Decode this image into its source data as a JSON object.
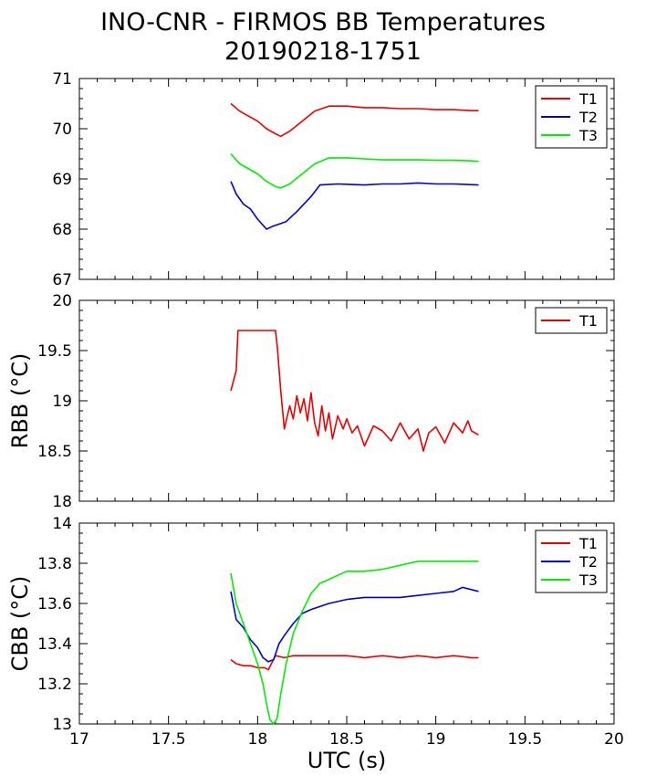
{
  "title": "INO-CNR - FIRMOS BB Temperatures",
  "subtitle": "20190218-1751",
  "colors": {
    "T1": "#ee0000",
    "T2": "#0000dd",
    "T3": "#00ee00",
    "axis": "#000000"
  },
  "chart_data": [
    {
      "type": "line",
      "ylabel": "",
      "xlim": [
        17,
        20
      ],
      "ylim": [
        67,
        71
      ],
      "yticks": [
        "67",
        "68",
        "69",
        "70",
        "71"
      ],
      "legend_placement": "top-right",
      "series": [
        {
          "name": "T1",
          "x": [
            17.85,
            17.9,
            17.95,
            18.0,
            18.05,
            18.1,
            18.13,
            18.18,
            18.25,
            18.32,
            18.4,
            18.5,
            18.6,
            18.7,
            18.8,
            18.9,
            19.0,
            19.1,
            19.2,
            19.24
          ],
          "y": [
            70.5,
            70.35,
            70.25,
            70.15,
            70.0,
            69.9,
            69.85,
            69.95,
            70.15,
            70.35,
            70.45,
            70.45,
            70.42,
            70.42,
            70.4,
            70.4,
            70.38,
            70.38,
            70.36,
            70.36
          ]
        },
        {
          "name": "T2",
          "x": [
            17.85,
            17.88,
            17.92,
            17.96,
            18.0,
            18.05,
            18.08,
            18.12,
            18.16,
            18.22,
            18.3,
            18.35,
            18.45,
            18.6,
            18.7,
            18.8,
            18.9,
            19.0,
            19.1,
            19.24
          ],
          "y": [
            68.95,
            68.7,
            68.5,
            68.4,
            68.2,
            68.0,
            68.05,
            68.1,
            68.15,
            68.35,
            68.65,
            68.88,
            68.9,
            68.88,
            68.9,
            68.9,
            68.92,
            68.9,
            68.9,
            68.88
          ]
        },
        {
          "name": "T3",
          "x": [
            17.85,
            17.9,
            17.95,
            18.0,
            18.05,
            18.1,
            18.13,
            18.18,
            18.25,
            18.32,
            18.4,
            18.5,
            18.6,
            18.7,
            18.8,
            18.9,
            19.0,
            19.1,
            19.2,
            19.24
          ],
          "y": [
            69.5,
            69.3,
            69.2,
            69.1,
            68.95,
            68.85,
            68.82,
            68.9,
            69.1,
            69.3,
            69.42,
            69.42,
            69.4,
            69.38,
            69.38,
            69.38,
            69.37,
            69.37,
            69.36,
            69.35
          ]
        }
      ]
    },
    {
      "type": "line",
      "ylabel": "RBB (°C)",
      "xlim": [
        17,
        20
      ],
      "ylim": [
        18,
        20
      ],
      "yticks": [
        "18",
        "18.5",
        "19",
        "19.5",
        "20"
      ],
      "legend_placement": "top-right",
      "series": [
        {
          "name": "T1",
          "x": [
            17.85,
            17.88,
            17.89,
            18.0,
            18.1,
            18.11,
            18.13,
            18.15,
            18.18,
            18.2,
            18.22,
            18.24,
            18.26,
            18.28,
            18.3,
            18.32,
            18.34,
            18.36,
            18.38,
            18.4,
            18.42,
            18.45,
            18.48,
            18.5,
            18.53,
            18.56,
            18.6,
            18.65,
            18.7,
            18.75,
            18.8,
            18.85,
            18.9,
            18.93,
            18.96,
            19.0,
            19.05,
            19.1,
            19.15,
            19.18,
            19.2,
            19.24
          ],
          "y": [
            19.1,
            19.3,
            19.7,
            19.7,
            19.7,
            19.55,
            19.1,
            18.72,
            18.95,
            18.82,
            19.05,
            18.88,
            19.02,
            18.8,
            19.08,
            18.78,
            18.65,
            18.95,
            18.7,
            18.88,
            18.62,
            18.85,
            18.72,
            18.82,
            18.68,
            18.75,
            18.55,
            18.75,
            18.7,
            18.6,
            18.78,
            18.62,
            18.72,
            18.5,
            18.68,
            18.74,
            18.58,
            18.78,
            18.68,
            18.8,
            18.7,
            18.66
          ]
        }
      ]
    },
    {
      "type": "line",
      "xlabel": "UTC (s)",
      "ylabel": "CBB (°C)",
      "xlim": [
        17,
        20
      ],
      "ylim": [
        13,
        14
      ],
      "xticks": [
        "17",
        "17.5",
        "18",
        "18.5",
        "19",
        "19.5",
        "20"
      ],
      "yticks": [
        "13",
        "13.2",
        "13.4",
        "13.6",
        "13.8",
        "14"
      ],
      "legend_placement": "top-right",
      "series": [
        {
          "name": "T1",
          "x": [
            17.85,
            17.88,
            17.92,
            17.96,
            18.0,
            18.04,
            18.06,
            18.1,
            18.15,
            18.2,
            18.3,
            18.4,
            18.5,
            18.6,
            18.7,
            18.8,
            18.9,
            19.0,
            19.1,
            19.2,
            19.24
          ],
          "y": [
            13.32,
            13.3,
            13.29,
            13.29,
            13.28,
            13.28,
            13.27,
            13.34,
            13.33,
            13.34,
            13.34,
            13.34,
            13.34,
            13.33,
            13.34,
            13.33,
            13.34,
            13.33,
            13.34,
            13.33,
            13.33
          ]
        },
        {
          "name": "T2",
          "x": [
            17.85,
            17.88,
            17.92,
            17.96,
            18.0,
            18.03,
            18.06,
            18.09,
            18.12,
            18.15,
            18.2,
            18.25,
            18.3,
            18.4,
            18.5,
            18.6,
            18.7,
            18.8,
            18.9,
            19.0,
            19.1,
            19.15,
            19.24
          ],
          "y": [
            13.66,
            13.52,
            13.48,
            13.42,
            13.38,
            13.33,
            13.31,
            13.32,
            13.4,
            13.44,
            13.5,
            13.55,
            13.57,
            13.6,
            13.62,
            13.63,
            13.63,
            13.63,
            13.64,
            13.65,
            13.66,
            13.68,
            13.66
          ]
        },
        {
          "name": "T3",
          "x": [
            17.85,
            17.88,
            17.92,
            17.96,
            18.0,
            18.03,
            18.05,
            18.07,
            18.09,
            18.11,
            18.13,
            18.16,
            18.2,
            18.25,
            18.3,
            18.35,
            18.4,
            18.5,
            18.6,
            18.7,
            18.8,
            18.9,
            19.0,
            19.1,
            19.24
          ],
          "y": [
            13.75,
            13.6,
            13.5,
            13.4,
            13.3,
            13.2,
            13.1,
            13.02,
            13.0,
            13.03,
            13.15,
            13.3,
            13.45,
            13.56,
            13.65,
            13.7,
            13.72,
            13.76,
            13.76,
            13.77,
            13.79,
            13.81,
            13.81,
            13.81,
            13.81
          ]
        }
      ]
    }
  ]
}
